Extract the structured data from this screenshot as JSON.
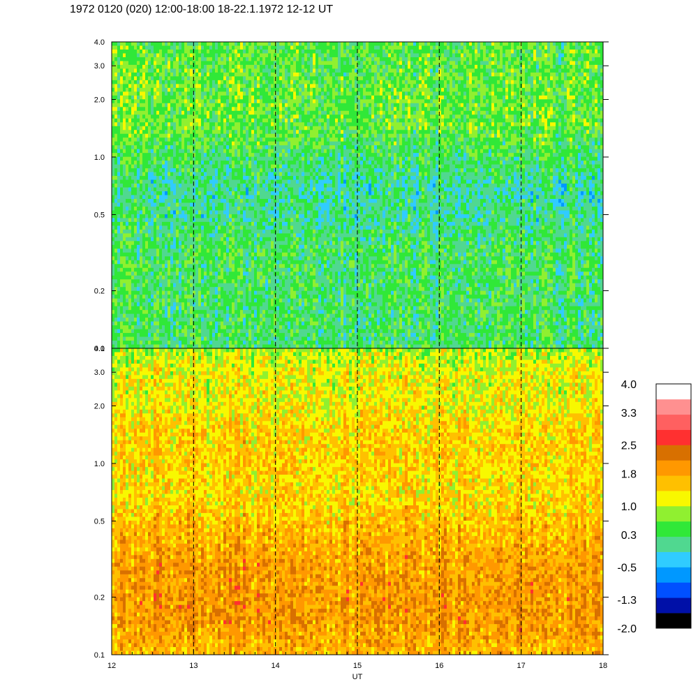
{
  "title": "1972 0120 (020) 12:00-18:00 18-22.1.1972  12-12 UT",
  "chart_data": {
    "type": "heatmap",
    "xlabel": "UT",
    "x_ticks": [
      "12",
      "13",
      "14",
      "15",
      "16",
      "17",
      "18"
    ],
    "xlim": [
      12,
      18
    ],
    "y_scale": "log",
    "ylim": [
      0.1,
      4.0
    ],
    "y_ticks": [
      "4.0",
      "3.0",
      "2.0",
      "1.0",
      "0.5",
      "0.2",
      "0.1"
    ],
    "y_tick_values": [
      4.0,
      3.0,
      2.0,
      1.0,
      0.5,
      0.2,
      0.1
    ],
    "dashed_gridlines_x": [
      13,
      14,
      15,
      16,
      17
    ],
    "panels": [
      {
        "name": "upper",
        "dominant_levels": "0.3 to 1.0",
        "profile": [
          {
            "y": 0.1,
            "level": 0.3
          },
          {
            "y": 0.15,
            "level": 0.3
          },
          {
            "y": 0.2,
            "level": 0.3
          },
          {
            "y": 0.3,
            "level": 0.35
          },
          {
            "y": 0.5,
            "level": 0.1
          },
          {
            "y": 0.7,
            "level": 0.05
          },
          {
            "y": 1.0,
            "level": 0.3
          },
          {
            "y": 1.5,
            "level": 0.6
          },
          {
            "y": 2.0,
            "level": 0.6
          },
          {
            "y": 3.0,
            "level": 0.5
          },
          {
            "y": 4.0,
            "level": 0.5
          }
        ]
      },
      {
        "name": "lower",
        "dominant_levels": "1.0 to 2.5",
        "profile": [
          {
            "y": 0.1,
            "level": 1.7
          },
          {
            "y": 0.15,
            "level": 1.95
          },
          {
            "y": 0.2,
            "level": 1.95
          },
          {
            "y": 0.3,
            "level": 1.9
          },
          {
            "y": 0.5,
            "level": 1.6
          },
          {
            "y": 0.7,
            "level": 1.4
          },
          {
            "y": 1.0,
            "level": 1.5
          },
          {
            "y": 1.5,
            "level": 1.45
          },
          {
            "y": 2.0,
            "level": 1.25
          },
          {
            "y": 3.0,
            "level": 1.2
          },
          {
            "y": 4.0,
            "level": 0.9
          }
        ]
      }
    ],
    "colorbar": {
      "labels": [
        "4.0",
        "3.3",
        "2.5",
        "1.8",
        "1.0",
        "0.3",
        "-0.5",
        "-1.3",
        "-2.0"
      ],
      "min": -2.0,
      "max": 4.0,
      "colors": [
        "#000000",
        "#0010a8",
        "#0050ff",
        "#0098ff",
        "#30ccff",
        "#50d890",
        "#30e838",
        "#90f030",
        "#f8f800",
        "#ffc000",
        "#ff9800",
        "#d87000",
        "#ff3030",
        "#ff6060",
        "#ff9090",
        "#ffffff"
      ]
    }
  }
}
